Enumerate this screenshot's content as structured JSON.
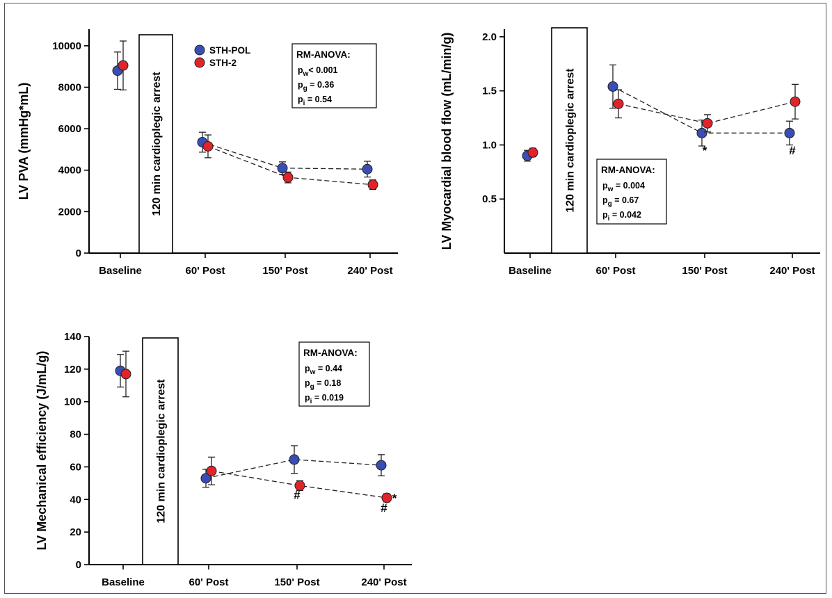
{
  "legend": [
    {
      "name": "STH-POL",
      "color": "#3a4db5"
    },
    {
      "name": "STH-2",
      "color": "#e0242a"
    }
  ],
  "categories": [
    "Baseline",
    "60' Post",
    "150' Post",
    "240' Post"
  ],
  "arrest_label": "120 min cardioplegic arrest",
  "chart_data": [
    {
      "id": "pva",
      "type": "line",
      "ylabel": "LV PVA (mmHg*mL)",
      "ylim": [
        0,
        10800
      ],
      "yticks": [
        0,
        2000,
        4000,
        6000,
        8000,
        10000
      ],
      "ytick_labels": [
        "0",
        "2000",
        "4000",
        "6000",
        "8000",
        "10000"
      ],
      "categories": [
        "Baseline",
        "60' Post",
        "150' Post",
        "240' Post"
      ],
      "series": [
        {
          "name": "STH-POL",
          "color": "#3a4db5",
          "values": [
            8800,
            5350,
            4100,
            4050
          ],
          "errors": [
            900,
            480,
            300,
            380
          ]
        },
        {
          "name": "STH-2",
          "color": "#e0242a",
          "values": [
            9050,
            5150,
            3650,
            3300
          ],
          "errors": [
            1180,
            550,
            260,
            230
          ]
        }
      ],
      "stats": {
        "title": "RM-ANOVA:",
        "rows": [
          {
            "p": "p",
            "sub": "w",
            "rest": "< 0.001"
          },
          {
            "p": "p",
            "sub": "g",
            "rest": " = 0.36"
          },
          {
            "p": "p",
            "sub": "i",
            "rest": " = 0.54"
          }
        ]
      },
      "annotations": []
    },
    {
      "id": "mbf",
      "type": "line",
      "ylabel": "LV  Myocardial blood flow (mL/min/g)",
      "ylim": [
        0,
        2.07
      ],
      "yticks": [
        0.5,
        1.0,
        1.5,
        2.0
      ],
      "ytick_labels": [
        "0.5",
        "1.0",
        "1.5",
        "2.0"
      ],
      "categories": [
        "Baseline",
        "60' Post",
        "150' Post",
        "240' Post"
      ],
      "series": [
        {
          "name": "STH-POL",
          "color": "#3a4db5",
          "values": [
            0.9,
            1.54,
            1.11,
            1.11
          ],
          "errors": [
            0.05,
            0.2,
            0.12,
            0.11
          ]
        },
        {
          "name": "STH-2",
          "color": "#e0242a",
          "values": [
            0.93,
            1.38,
            1.2,
            1.4
          ],
          "errors": [
            0.04,
            0.13,
            0.08,
            0.16
          ]
        }
      ],
      "stats": {
        "title": "RM-ANOVA:",
        "rows": [
          {
            "p": "p",
            "sub": "w",
            "rest": " = 0.004"
          },
          {
            "p": "p",
            "sub": "g",
            "rest": " = 0.67"
          },
          {
            "p": "p",
            "sub": "i",
            "rest": " = 0.042"
          }
        ]
      },
      "annotations": [
        {
          "text": "*",
          "category": "150' Post",
          "value": 0.95
        },
        {
          "text": "#",
          "category": "240' Post",
          "value": 0.95
        }
      ]
    },
    {
      "id": "eff",
      "type": "line",
      "ylabel": "LV  Mechanical efficiency (J/mL/g)",
      "ylim": [
        0,
        140
      ],
      "yticks": [
        0,
        20,
        40,
        60,
        80,
        100,
        120,
        140
      ],
      "ytick_labels": [
        "0",
        "20",
        "40",
        "60",
        "80",
        "100",
        "120",
        "140"
      ],
      "categories": [
        "Baseline",
        "60' Post",
        "150' Post",
        "240' Post"
      ],
      "series": [
        {
          "name": "STH-POL",
          "color": "#3a4db5",
          "values": [
            119,
            53,
            64.5,
            61
          ],
          "errors": [
            10,
            5.5,
            8.5,
            6.5
          ]
        },
        {
          "name": "STH-2",
          "color": "#e0242a",
          "values": [
            117,
            57.5,
            48.5,
            41
          ],
          "errors": [
            14,
            8.5,
            3,
            2.5
          ]
        }
      ],
      "stats": {
        "title": "RM-ANOVA:",
        "rows": [
          {
            "p": "p",
            "sub": "w",
            "rest": " = 0.44"
          },
          {
            "p": "p",
            "sub": "g",
            "rest": " = 0.18"
          },
          {
            "p": "p",
            "sub": "i",
            "rest": " = 0.019"
          }
        ]
      },
      "annotations": [
        {
          "text": "#",
          "category": "150' Post",
          "value": 43
        },
        {
          "text": "#",
          "category": "240' Post",
          "value": 35
        },
        {
          "text": "*",
          "category": "240' Post",
          "value": 41,
          "beside": true
        }
      ]
    }
  ]
}
